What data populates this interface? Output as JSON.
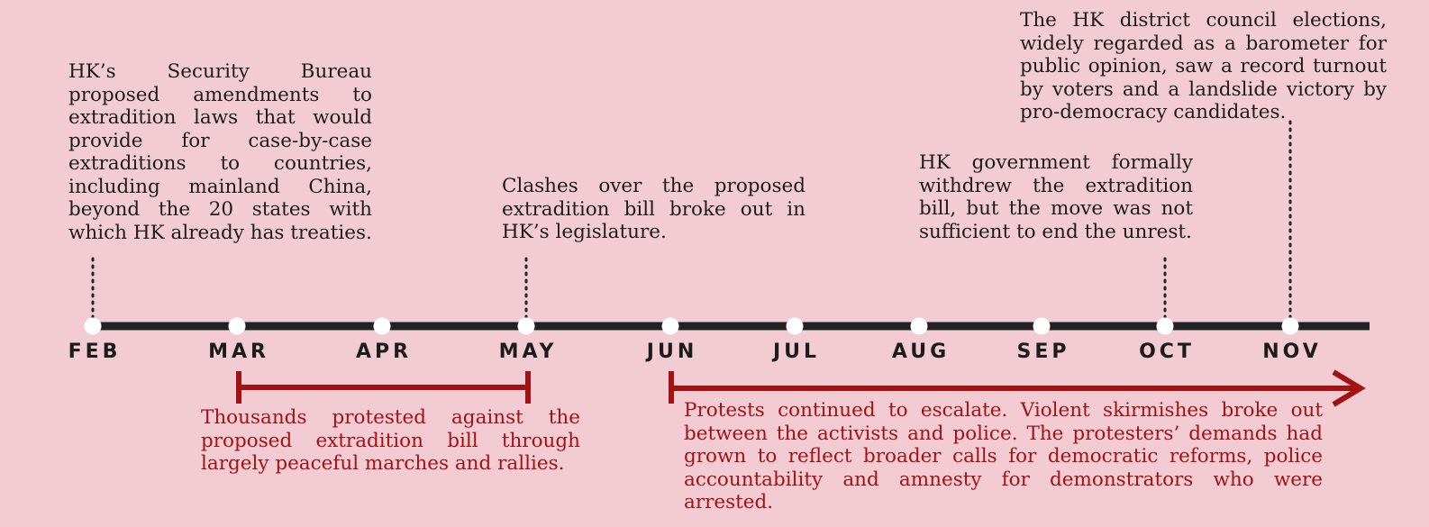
{
  "colors": {
    "background": "#f2ccd2",
    "axis": "#222222",
    "text": "#1c1c1c",
    "accent": "#a31212",
    "dot": "#ffffff"
  },
  "timeline": {
    "months": [
      "FEB",
      "MAR",
      "APR",
      "MAY",
      "JUN",
      "JUL",
      "AUG",
      "SEP",
      "OCT",
      "NOV"
    ]
  },
  "events": {
    "feb": "HK’s Security Bureau proposed amendments to extradition laws that would provide for case-by-case extraditions to countries, including mainland China, beyond the 20 states with which HK already has treaties.",
    "may": "Clashes over the proposed extradition bill broke out in HK’s legislature.",
    "oct": "HK government formally withdrew the extradition bill, but the move was not sufficient to end the unrest.",
    "nov": "The HK district council elections, widely regarded as a barometer for public opinion, saw a record turnout by voters and a landslide victory by pro-democracy candidates."
  },
  "periods": {
    "mar_may": "Thousands protested against the proposed extradition bill through largely peaceful marches and rallies.",
    "jun_onward": "Protests continued to escalate. Violent skirmishes broke out between the activists and police. The protesters’ demands had grown to reflect broader calls for democratic reforms, police accountability and amnesty for demonstrators who were arrested."
  }
}
